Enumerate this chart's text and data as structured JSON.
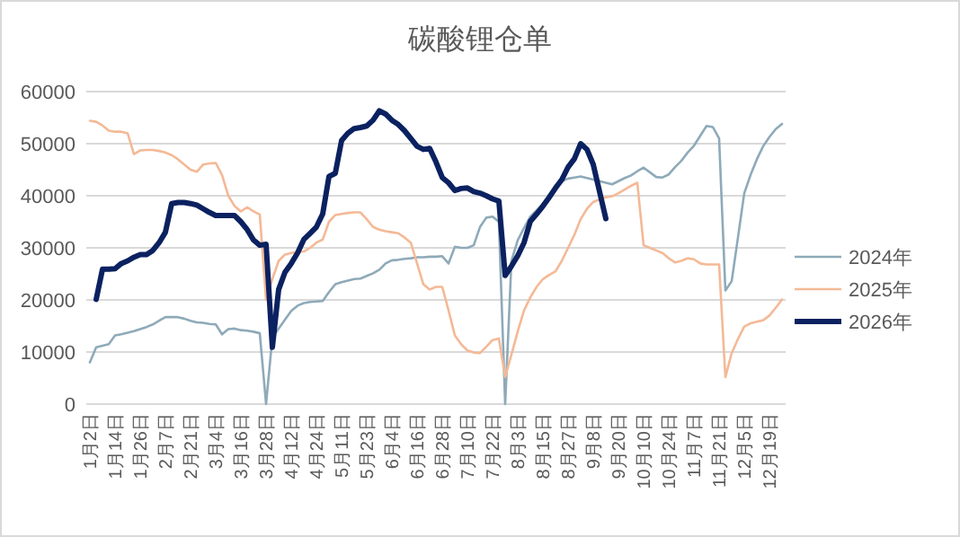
{
  "chart_data": {
    "type": "line",
    "title": "碳酸锂仓单",
    "categories": [
      "1月2日",
      null,
      null,
      null,
      "1月14日",
      null,
      null,
      null,
      "1月26日",
      null,
      null,
      null,
      "2月7日",
      null,
      null,
      null,
      "2月21日",
      null,
      null,
      null,
      "3月4日",
      null,
      null,
      null,
      "3月16日",
      null,
      null,
      null,
      "3月28日",
      null,
      null,
      null,
      "4月12日",
      null,
      null,
      null,
      "4月24日",
      null,
      null,
      null,
      "5月11日",
      null,
      null,
      null,
      "5月23日",
      null,
      null,
      null,
      "6月4日",
      null,
      null,
      null,
      "6月16日",
      null,
      null,
      null,
      "6月28日",
      null,
      null,
      null,
      "7月10日",
      null,
      null,
      null,
      "7月22日",
      null,
      null,
      null,
      "8月3日",
      null,
      null,
      null,
      "8月15日",
      null,
      null,
      null,
      "8月27日",
      null,
      null,
      null,
      "9月8日",
      null,
      null,
      null,
      "9月20日",
      null,
      null,
      null,
      "10月10日",
      null,
      null,
      null,
      "10月24日",
      null,
      null,
      null,
      "11月7日",
      null,
      null,
      null,
      "11月21日",
      null,
      null,
      null,
      "12月5日",
      null,
      null,
      null,
      "12月19日",
      null,
      null
    ],
    "series": [
      {
        "name": "2024年",
        "color": "#8eaab9",
        "values": [
          8000,
          10900,
          11200,
          11500,
          13200,
          13400,
          13700,
          14000,
          14400,
          14800,
          15300,
          16000,
          16700,
          16700,
          16700,
          16400,
          16000,
          15700,
          15600,
          15400,
          15300,
          13400,
          14400,
          14500,
          14200,
          14100,
          13900,
          13600,
          0,
          12800,
          14500,
          16200,
          17900,
          18900,
          19400,
          19600,
          19700,
          19800,
          21500,
          23000,
          23400,
          23700,
          24000,
          24100,
          24600,
          25100,
          25800,
          27000,
          27600,
          27700,
          27900,
          28000,
          28200,
          28200,
          28300,
          28300,
          28400,
          27000,
          30200,
          30000,
          30000,
          30500,
          34000,
          35800,
          36000,
          35000,
          0,
          27500,
          31500,
          33800,
          36000,
          37200,
          38500,
          39800,
          41000,
          42800,
          43300,
          43500,
          43700,
          43400,
          43100,
          42800,
          42500,
          42200,
          42800,
          43400,
          43900,
          44700,
          45400,
          44500,
          43600,
          43500,
          44100,
          45500,
          46700,
          48300,
          49600,
          51500,
          53400,
          53200,
          51000,
          21800,
          23600,
          32000,
          40500,
          44000,
          47000,
          49500,
          51300,
          52800,
          53800
        ]
      },
      {
        "name": "2025年",
        "color": "#f4b996",
        "values": [
          54400,
          54200,
          53500,
          52500,
          52300,
          52300,
          52000,
          48000,
          48700,
          48800,
          48800,
          48600,
          48300,
          47800,
          47000,
          46000,
          45000,
          44600,
          46000,
          46200,
          46300,
          44000,
          40000,
          38000,
          37000,
          37800,
          37000,
          36400,
          20000,
          24000,
          27500,
          28700,
          29000,
          29200,
          29300,
          30000,
          31000,
          31600,
          35000,
          36300,
          36500,
          36700,
          36800,
          36800,
          35500,
          34000,
          33500,
          33200,
          33000,
          32800,
          32000,
          31000,
          27000,
          23000,
          22000,
          22500,
          22500,
          18000,
          13200,
          11500,
          10300,
          9900,
          9800,
          11000,
          12300,
          12600,
          5200,
          9500,
          14000,
          18000,
          20500,
          22500,
          24000,
          24800,
          25500,
          27500,
          30000,
          32500,
          35500,
          37500,
          38800,
          39300,
          39700,
          39900,
          40500,
          41200,
          41900,
          42500,
          30500,
          30000,
          29500,
          29000,
          28000,
          27200,
          27500,
          28000,
          27800,
          27000,
          26800,
          26800,
          26800,
          5200,
          9800,
          12500,
          14900,
          15500,
          15800,
          16100,
          17000,
          18500,
          20100
        ]
      },
      {
        "name": "2026年",
        "color": "#0b2160",
        "values": [
          null,
          20100,
          25900,
          25900,
          26000,
          27000,
          27500,
          28200,
          28700,
          28700,
          29500,
          31000,
          33000,
          38500,
          38700,
          38700,
          38500,
          38200,
          37500,
          36800,
          36200,
          36200,
          36200,
          36200,
          35000,
          33500,
          31500,
          30500,
          30700,
          10900,
          22000,
          25300,
          27000,
          29000,
          31600,
          32800,
          34000,
          36500,
          43700,
          44300,
          50600,
          52000,
          52900,
          53100,
          53400,
          54500,
          56300,
          55700,
          54500,
          53700,
          52500,
          51000,
          49500,
          48900,
          49100,
          46500,
          43500,
          42500,
          41000,
          41400,
          41500,
          40800,
          40500,
          40000,
          39400,
          39000,
          24700,
          26500,
          28500,
          31000,
          35100,
          36500,
          38000,
          39700,
          41500,
          43100,
          45500,
          47100,
          50000,
          48900,
          46000,
          40800,
          35600,
          null,
          null,
          null,
          null,
          null,
          null,
          null,
          null,
          null,
          null,
          null,
          null,
          null,
          null,
          null,
          null,
          null,
          null,
          null,
          null,
          null,
          null,
          null,
          null,
          null,
          null,
          null,
          null
        ]
      }
    ],
    "ylim": [
      0,
      60000
    ],
    "yticks": [
      0,
      10000,
      20000,
      30000,
      40000,
      50000,
      60000
    ],
    "grid": "y",
    "legend": "right",
    "marker": "none",
    "line_style": "solid"
  }
}
